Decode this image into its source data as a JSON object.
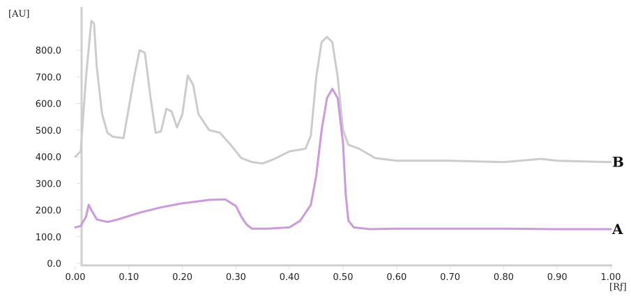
{
  "chart_data": {
    "type": "line",
    "title": "",
    "xlabel": "[Rƒ]",
    "ylabel": "[AU]",
    "xlim": [
      0,
      1
    ],
    "ylim": [
      0,
      950
    ],
    "x_ticks": [
      0,
      0.1,
      0.2,
      0.3,
      0.4,
      0.5,
      0.6,
      0.7,
      0.8,
      0.9,
      1.0
    ],
    "x_tick_labels": [
      "0.00",
      "0.10",
      "0.20",
      "0.30",
      "0.40",
      "0.50",
      "0.60",
      "0.70",
      "0.80",
      "0.90",
      "1.00"
    ],
    "y_ticks": [
      0,
      100,
      200,
      300,
      400,
      500,
      600,
      700,
      800
    ],
    "y_tick_labels": [
      "0.0",
      "100.0",
      "200.0",
      "300.0",
      "400.0",
      "500.0",
      "600.0",
      "700.0",
      "800.0"
    ],
    "grid": false,
    "legend": "labels at right end of each line",
    "series": [
      {
        "name": "B",
        "color": "#cccccc",
        "points": [
          [
            0.0,
            400
          ],
          [
            0.01,
            420
          ],
          [
            0.02,
            700
          ],
          [
            0.03,
            910
          ],
          [
            0.035,
            900
          ],
          [
            0.04,
            740
          ],
          [
            0.05,
            560
          ],
          [
            0.06,
            490
          ],
          [
            0.07,
            475
          ],
          [
            0.09,
            470
          ],
          [
            0.11,
            700
          ],
          [
            0.12,
            800
          ],
          [
            0.13,
            790
          ],
          [
            0.14,
            630
          ],
          [
            0.15,
            490
          ],
          [
            0.16,
            495
          ],
          [
            0.17,
            580
          ],
          [
            0.18,
            570
          ],
          [
            0.19,
            510
          ],
          [
            0.2,
            560
          ],
          [
            0.21,
            705
          ],
          [
            0.22,
            670
          ],
          [
            0.23,
            560
          ],
          [
            0.25,
            500
          ],
          [
            0.27,
            490
          ],
          [
            0.29,
            445
          ],
          [
            0.31,
            395
          ],
          [
            0.33,
            380
          ],
          [
            0.35,
            375
          ],
          [
            0.37,
            390
          ],
          [
            0.4,
            420
          ],
          [
            0.43,
            430
          ],
          [
            0.44,
            480
          ],
          [
            0.45,
            700
          ],
          [
            0.46,
            830
          ],
          [
            0.47,
            850
          ],
          [
            0.48,
            830
          ],
          [
            0.49,
            700
          ],
          [
            0.5,
            500
          ],
          [
            0.51,
            445
          ],
          [
            0.53,
            430
          ],
          [
            0.56,
            395
          ],
          [
            0.6,
            385
          ],
          [
            0.7,
            385
          ],
          [
            0.8,
            380
          ],
          [
            0.87,
            392
          ],
          [
            0.9,
            385
          ],
          [
            1.0,
            380
          ]
        ]
      },
      {
        "name": "A",
        "color": "#cc99dd",
        "points": [
          [
            0.0,
            135
          ],
          [
            0.01,
            140
          ],
          [
            0.02,
            175
          ],
          [
            0.025,
            220
          ],
          [
            0.03,
            200
          ],
          [
            0.04,
            165
          ],
          [
            0.06,
            155
          ],
          [
            0.08,
            165
          ],
          [
            0.12,
            190
          ],
          [
            0.16,
            210
          ],
          [
            0.2,
            225
          ],
          [
            0.22,
            230
          ],
          [
            0.25,
            238
          ],
          [
            0.28,
            240
          ],
          [
            0.3,
            215
          ],
          [
            0.31,
            175
          ],
          [
            0.32,
            145
          ],
          [
            0.33,
            130
          ],
          [
            0.36,
            130
          ],
          [
            0.4,
            135
          ],
          [
            0.42,
            160
          ],
          [
            0.44,
            220
          ],
          [
            0.45,
            330
          ],
          [
            0.46,
            500
          ],
          [
            0.47,
            620
          ],
          [
            0.48,
            655
          ],
          [
            0.49,
            620
          ],
          [
            0.5,
            450
          ],
          [
            0.505,
            260
          ],
          [
            0.51,
            160
          ],
          [
            0.52,
            135
          ],
          [
            0.55,
            128
          ],
          [
            0.6,
            130
          ],
          [
            0.7,
            130
          ],
          [
            0.8,
            130
          ],
          [
            0.9,
            128
          ],
          [
            1.0,
            128
          ]
        ]
      }
    ]
  }
}
